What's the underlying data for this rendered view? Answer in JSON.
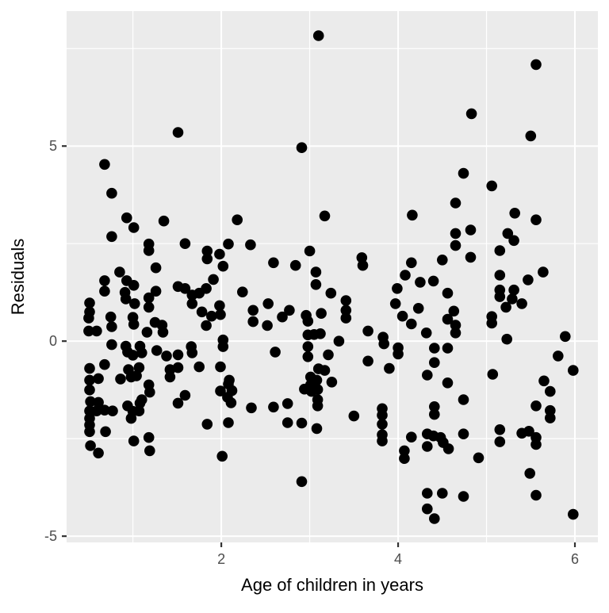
{
  "chart_data": {
    "type": "scatter",
    "title": "",
    "xlabel": "Age of children in years",
    "ylabel": "Residuals",
    "xlim": [
      0.25,
      6.26
    ],
    "ylim": [
      -5.16,
      8.46
    ],
    "x_major_ticks": [
      2,
      4,
      6
    ],
    "x_tick_labels": [
      "2",
      "4",
      "6"
    ],
    "y_major_ticks": [
      -5,
      0,
      5
    ],
    "y_tick_labels": [
      "-5",
      "0",
      "5"
    ],
    "x_minor_gridlines": [
      1,
      3,
      5
    ],
    "y_minor_gridlines": [
      -2.5,
      2.5,
      7.5
    ],
    "grid": true,
    "legend_position": "none",
    "panel_background": "#ebebeb",
    "gridline_color": "#ffffff",
    "point_color": "#000000",
    "point_radius": 6.8,
    "tick_mark_color": "#333333",
    "tick_label_color": "#4d4d4d",
    "axis_title_color": "#000000",
    "points": [
      [
        1.51,
        5.35
      ],
      [
        0.68,
        4.53
      ],
      [
        3.1,
        7.83
      ],
      [
        2.91,
        4.96
      ],
      [
        5.56,
        7.09
      ],
      [
        4.83,
        5.83
      ],
      [
        5.5,
        5.26
      ],
      [
        4.74,
        4.3
      ],
      [
        5.06,
        3.98
      ],
      [
        0.76,
        3.79
      ],
      [
        0.93,
        3.16
      ],
      [
        1.01,
        2.91
      ],
      [
        1.35,
        3.08
      ],
      [
        2.18,
        3.11
      ],
      [
        0.76,
        2.68
      ],
      [
        1.18,
        2.49
      ],
      [
        1.18,
        2.32
      ],
      [
        1.59,
        2.5
      ],
      [
        1.84,
        2.31
      ],
      [
        1.84,
        2.11
      ],
      [
        1.98,
        2.23
      ],
      [
        2.08,
        2.49
      ],
      [
        1.26,
        1.88
      ],
      [
        2.02,
        1.92
      ],
      [
        0.85,
        1.77
      ],
      [
        0.93,
        1.55
      ],
      [
        1.01,
        1.43
      ],
      [
        0.68,
        1.55
      ],
      [
        0.68,
        1.28
      ],
      [
        1.51,
        1.4
      ],
      [
        1.59,
        1.35
      ],
      [
        1.67,
        1.18
      ],
      [
        1.75,
        1.23
      ],
      [
        1.83,
        1.35
      ],
      [
        1.91,
        1.58
      ],
      [
        0.91,
        1.25
      ],
      [
        0.92,
        1.08
      ],
      [
        1.02,
        0.96
      ],
      [
        1.18,
        1.11
      ],
      [
        1.18,
        0.87
      ],
      [
        1.26,
        1.28
      ],
      [
        0.51,
        0.98
      ],
      [
        0.51,
        0.75
      ],
      [
        0.5,
        0.59
      ],
      [
        1.67,
        0.96
      ],
      [
        1.78,
        0.75
      ],
      [
        1.98,
        0.91
      ],
      [
        1.99,
        0.68
      ],
      [
        1.83,
        0.4
      ],
      [
        0.75,
        0.62
      ],
      [
        0.76,
        0.37
      ],
      [
        1.0,
        0.61
      ],
      [
        1.01,
        0.43
      ],
      [
        1.25,
        0.48
      ],
      [
        1.33,
        0.41
      ],
      [
        1.34,
        0.23
      ],
      [
        1.89,
        0.64
      ],
      [
        0.5,
        0.26
      ],
      [
        0.59,
        0.26
      ],
      [
        1.16,
        0.23
      ],
      [
        0.76,
        -0.09
      ],
      [
        0.92,
        -0.13
      ],
      [
        0.94,
        -0.28
      ],
      [
        1.08,
        -0.13
      ],
      [
        1.1,
        -0.3
      ],
      [
        1.0,
        -0.36
      ],
      [
        1.27,
        -0.24
      ],
      [
        1.38,
        -0.38
      ],
      [
        1.51,
        -0.35
      ],
      [
        1.66,
        -0.14
      ],
      [
        1.67,
        -0.3
      ],
      [
        2.02,
        0.03
      ],
      [
        2.02,
        -0.14
      ],
      [
        3.17,
        3.21
      ],
      [
        4.16,
        3.23
      ],
      [
        2.33,
        2.47
      ],
      [
        3.0,
        2.31
      ],
      [
        2.59,
        2.01
      ],
      [
        2.84,
        1.94
      ],
      [
        3.59,
        2.14
      ],
      [
        3.6,
        1.94
      ],
      [
        4.15,
        2.01
      ],
      [
        4.08,
        1.69
      ],
      [
        3.07,
        1.77
      ],
      [
        3.07,
        1.45
      ],
      [
        3.24,
        1.23
      ],
      [
        2.24,
        1.26
      ],
      [
        3.99,
        1.35
      ],
      [
        2.53,
        0.96
      ],
      [
        2.36,
        0.79
      ],
      [
        2.77,
        0.79
      ],
      [
        2.69,
        0.62
      ],
      [
        2.36,
        0.5
      ],
      [
        2.52,
        0.4
      ],
      [
        3.41,
        1.04
      ],
      [
        3.97,
        0.96
      ],
      [
        3.41,
        0.79
      ],
      [
        3.41,
        0.59
      ],
      [
        2.96,
        0.66
      ],
      [
        2.98,
        0.51
      ],
      [
        3.13,
        0.71
      ],
      [
        4.05,
        0.64
      ],
      [
        4.15,
        0.44
      ],
      [
        2.98,
        0.16
      ],
      [
        3.05,
        0.17
      ],
      [
        3.12,
        0.19
      ],
      [
        3.66,
        0.26
      ],
      [
        3.33,
        0.0
      ],
      [
        3.83,
        0.1
      ],
      [
        3.84,
        -0.07
      ],
      [
        4.0,
        -0.17
      ],
      [
        4.0,
        -0.33
      ],
      [
        2.61,
        -0.28
      ],
      [
        2.98,
        -0.14
      ],
      [
        2.98,
        -0.4
      ],
      [
        3.21,
        -0.35
      ],
      [
        3.66,
        -0.51
      ],
      [
        4.65,
        3.54
      ],
      [
        5.32,
        3.28
      ],
      [
        5.56,
        3.11
      ],
      [
        4.65,
        2.76
      ],
      [
        4.82,
        2.85
      ],
      [
        5.24,
        2.76
      ],
      [
        5.31,
        2.58
      ],
      [
        4.65,
        2.45
      ],
      [
        4.5,
        2.08
      ],
      [
        4.82,
        2.15
      ],
      [
        5.15,
        2.32
      ],
      [
        4.4,
        1.54
      ],
      [
        4.25,
        1.51
      ],
      [
        4.56,
        1.23
      ],
      [
        5.15,
        1.69
      ],
      [
        5.64,
        1.77
      ],
      [
        5.47,
        1.57
      ],
      [
        5.15,
        1.31
      ],
      [
        5.15,
        1.14
      ],
      [
        5.31,
        1.31
      ],
      [
        5.29,
        1.08
      ],
      [
        5.22,
        0.87
      ],
      [
        5.4,
        0.96
      ],
      [
        4.23,
        0.84
      ],
      [
        4.63,
        0.77
      ],
      [
        4.56,
        0.56
      ],
      [
        4.65,
        0.41
      ],
      [
        4.65,
        0.21
      ],
      [
        5.06,
        0.63
      ],
      [
        5.06,
        0.46
      ],
      [
        4.32,
        0.21
      ],
      [
        5.23,
        0.05
      ],
      [
        5.89,
        0.12
      ],
      [
        4.41,
        -0.18
      ],
      [
        4.56,
        -0.18
      ],
      [
        5.81,
        -0.38
      ],
      [
        4.41,
        -0.55
      ],
      [
        0.51,
        -0.7
      ],
      [
        0.68,
        -0.6
      ],
      [
        0.51,
        -1.0
      ],
      [
        0.61,
        -0.96
      ],
      [
        0.51,
        -1.25
      ],
      [
        0.86,
        -0.97
      ],
      [
        0.95,
        -0.73
      ],
      [
        0.98,
        -0.92
      ],
      [
        1.04,
        -0.89
      ],
      [
        1.07,
        -0.68
      ],
      [
        1.18,
        -1.12
      ],
      [
        1.19,
        -1.31
      ],
      [
        1.42,
        -0.73
      ],
      [
        1.42,
        -0.92
      ],
      [
        1.51,
        -0.68
      ],
      [
        1.75,
        -0.66
      ],
      [
        1.99,
        -0.66
      ],
      [
        2.09,
        -1.0
      ],
      [
        2.08,
        -1.1
      ],
      [
        2.12,
        -1.27
      ],
      [
        2.07,
        -1.44
      ],
      [
        2.11,
        -1.58
      ],
      [
        1.99,
        -1.28
      ],
      [
        0.52,
        -1.55
      ],
      [
        0.61,
        -1.57
      ],
      [
        1.1,
        -1.5
      ],
      [
        1.59,
        -1.39
      ],
      [
        1.51,
        -1.59
      ],
      [
        0.51,
        -1.79
      ],
      [
        0.51,
        -1.98
      ],
      [
        0.51,
        -2.15
      ],
      [
        0.51,
        -2.32
      ],
      [
        0.59,
        -1.79
      ],
      [
        0.68,
        -1.77
      ],
      [
        0.77,
        -1.79
      ],
      [
        0.69,
        -2.32
      ],
      [
        0.94,
        -1.66
      ],
      [
        1.0,
        -1.8
      ],
      [
        0.98,
        -1.98
      ],
      [
        1.08,
        -1.59
      ],
      [
        1.07,
        -1.79
      ],
      [
        1.01,
        -2.56
      ],
      [
        1.18,
        -2.47
      ],
      [
        1.19,
        -2.81
      ],
      [
        0.52,
        -2.68
      ],
      [
        0.61,
        -2.87
      ],
      [
        1.84,
        -2.13
      ],
      [
        2.08,
        -2.09
      ],
      [
        2.01,
        -2.95
      ],
      [
        3.1,
        -0.71
      ],
      [
        3.17,
        -0.75
      ],
      [
        3.01,
        -0.92
      ],
      [
        3.08,
        -1.0
      ],
      [
        3.01,
        -1.12
      ],
      [
        2.94,
        -1.23
      ],
      [
        3.02,
        -1.29
      ],
      [
        3.09,
        -1.24
      ],
      [
        3.25,
        -1.05
      ],
      [
        3.9,
        -0.7
      ],
      [
        3.09,
        -1.5
      ],
      [
        3.09,
        -1.66
      ],
      [
        2.34,
        -1.71
      ],
      [
        2.59,
        -1.69
      ],
      [
        2.75,
        -1.6
      ],
      [
        2.75,
        -2.09
      ],
      [
        2.91,
        -2.1
      ],
      [
        3.08,
        -2.24
      ],
      [
        3.5,
        -1.92
      ],
      [
        3.82,
        -1.73
      ],
      [
        3.82,
        -1.9
      ],
      [
        3.82,
        -2.13
      ],
      [
        3.82,
        -2.4
      ],
      [
        3.82,
        -2.56
      ],
      [
        4.15,
        -2.46
      ],
      [
        4.07,
        -2.81
      ],
      [
        4.07,
        -3.01
      ],
      [
        2.91,
        -3.6
      ],
      [
        4.33,
        -0.87
      ],
      [
        4.56,
        -1.07
      ],
      [
        4.74,
        -1.5
      ],
      [
        4.41,
        -1.68
      ],
      [
        4.41,
        -1.88
      ],
      [
        5.07,
        -0.85
      ],
      [
        5.65,
        -1.02
      ],
      [
        5.72,
        -1.29
      ],
      [
        5.98,
        -0.75
      ],
      [
        5.56,
        -1.66
      ],
      [
        5.72,
        -1.78
      ],
      [
        5.72,
        -1.97
      ],
      [
        4.33,
        -2.38
      ],
      [
        4.4,
        -2.43
      ],
      [
        4.48,
        -2.47
      ],
      [
        4.51,
        -2.6
      ],
      [
        4.33,
        -2.7
      ],
      [
        4.57,
        -2.76
      ],
      [
        4.74,
        -2.38
      ],
      [
        4.91,
        -2.99
      ],
      [
        5.15,
        -2.27
      ],
      [
        5.15,
        -2.58
      ],
      [
        5.4,
        -2.36
      ],
      [
        5.48,
        -2.31
      ],
      [
        5.56,
        -2.47
      ],
      [
        5.56,
        -2.65
      ],
      [
        5.49,
        -3.39
      ],
      [
        4.33,
        -3.9
      ],
      [
        4.5,
        -3.9
      ],
      [
        4.74,
        -3.98
      ],
      [
        5.56,
        -3.95
      ],
      [
        4.33,
        -4.3
      ],
      [
        4.41,
        -4.55
      ],
      [
        5.98,
        -4.44
      ]
    ]
  }
}
